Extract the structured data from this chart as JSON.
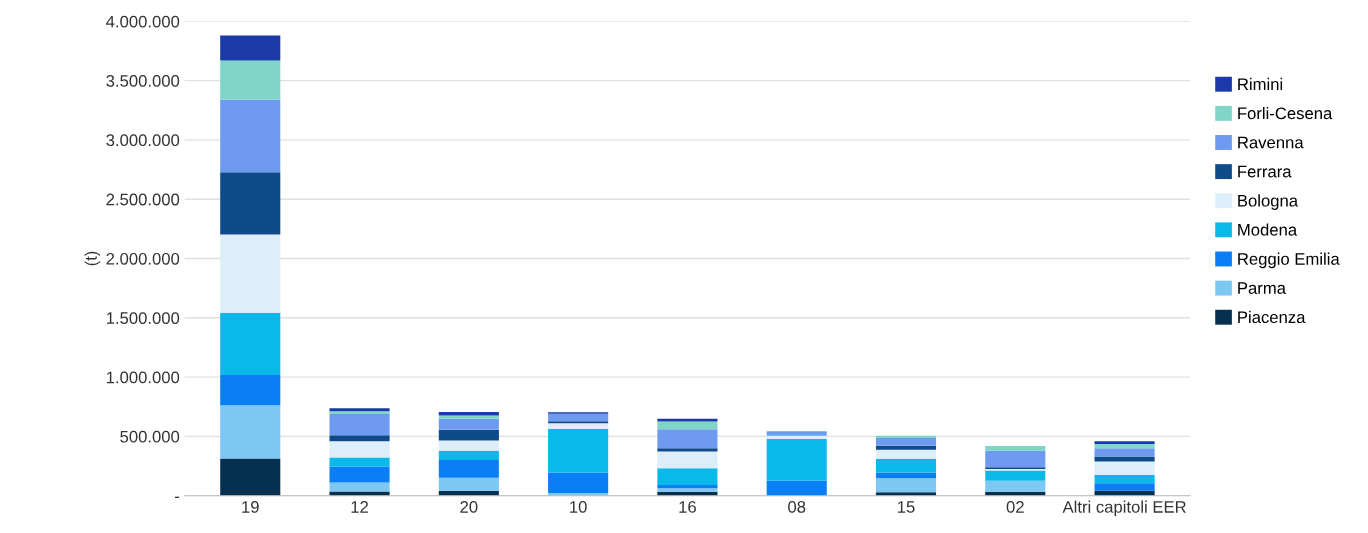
{
  "chart_data": {
    "type": "bar",
    "stacked": true,
    "ylabel": "(t)",
    "categories": [
      "19",
      "12",
      "20",
      "10",
      "16",
      "08",
      "15",
      "02",
      "Altri capitoli EER"
    ],
    "series": [
      {
        "name": "Piacenza",
        "color": "#06304f",
        "values": [
          314000,
          35000,
          42000,
          0,
          34000,
          0,
          28000,
          34000,
          42000
        ]
      },
      {
        "name": "Parma",
        "color": "#7cc8f2",
        "values": [
          449000,
          76000,
          110000,
          23000,
          28000,
          0,
          119000,
          93000,
          0
        ]
      },
      {
        "name": "Reggio Emilia",
        "color": "#0a7ef5",
        "values": [
          254000,
          136000,
          150000,
          170000,
          28000,
          127000,
          48000,
          0,
          62000
        ]
      },
      {
        "name": "Modena",
        "color": "#0ab8ea",
        "values": [
          525000,
          76000,
          76000,
          370000,
          141000,
          351000,
          116000,
          85000,
          71000
        ]
      },
      {
        "name": "Bologna",
        "color": "#dbeefa",
        "values": [
          661000,
          136000,
          87000,
          48000,
          141000,
          28000,
          76000,
          14000,
          113000
        ]
      },
      {
        "name": "Ferrara",
        "color": "#0f4a8a",
        "values": [
          525000,
          51000,
          90000,
          17000,
          28000,
          0,
          34000,
          14000,
          42000
        ]
      },
      {
        "name": "Ravenna",
        "color": "#6e9af0",
        "values": [
          610000,
          178000,
          93000,
          62000,
          161000,
          37000,
          65000,
          138000,
          71000
        ]
      },
      {
        "name": "Forli-Cesena",
        "color": "#7fd6c8",
        "values": [
          331000,
          25000,
          28000,
          0,
          65000,
          0,
          20000,
          42000,
          34000
        ]
      },
      {
        "name": "Rimini",
        "color": "#1a3aa8",
        "values": [
          212000,
          25000,
          29000,
          14000,
          23000,
          0,
          0,
          0,
          23000
        ]
      }
    ],
    "ylim": [
      0,
      4000000
    ],
    "yticks": [
      {
        "value": 0,
        "label": "-"
      },
      {
        "value": 500000,
        "label": "500.000"
      },
      {
        "value": 1000000,
        "label": "1.000.000"
      },
      {
        "value": 1500000,
        "label": "1.500.000"
      },
      {
        "value": 2000000,
        "label": "2.000.000"
      },
      {
        "value": 2500000,
        "label": "2.500.000"
      },
      {
        "value": 3000000,
        "label": "3.000.000"
      },
      {
        "value": 3500000,
        "label": "3.500.000"
      },
      {
        "value": 4000000,
        "label": "4.000.000"
      }
    ],
    "grid": "y",
    "legend": "right"
  }
}
